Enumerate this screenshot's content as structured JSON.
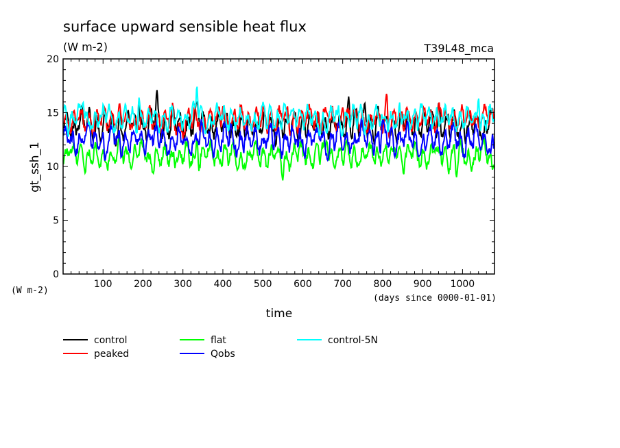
{
  "chart_data": {
    "type": "line",
    "title": "surface upward sensible heat flux",
    "units": "(W m-2)",
    "experiment": "T39L48_mca",
    "ylabel": "gt_ssh_1",
    "yunits": "(W m-2)",
    "xlabel": "time",
    "xunits": "(days since 0000-01-01)",
    "xlim": [
      0,
      1080
    ],
    "ylim": [
      0,
      20
    ],
    "xticks": [
      100,
      200,
      300,
      400,
      500,
      600,
      700,
      800,
      900,
      1000
    ],
    "yticks": [
      0,
      5,
      10,
      15,
      20
    ],
    "grid": false,
    "legend_position": "bottom",
    "series": [
      {
        "name": "control",
        "color": "#000000",
        "mean": 13.8,
        "amp": 0.9,
        "peaks": [
          [
            190,
            16.3
          ],
          [
            235,
            17.1
          ],
          [
            335,
            16.0
          ],
          [
            715,
            16.5
          ],
          [
            755,
            15.9
          ],
          [
            940,
            15.9
          ],
          [
            1070,
            15.4
          ]
        ]
      },
      {
        "name": "peaked",
        "color": "#ff0000",
        "mean": 14.3,
        "amp": 0.8,
        "peaks": [
          [
            105,
            15.4
          ],
          [
            400,
            15.6
          ],
          [
            700,
            15.5
          ],
          [
            810,
            16.8
          ],
          [
            860,
            15.5
          ]
        ]
      },
      {
        "name": "flat",
        "color": "#00ff00",
        "mean": 11.0,
        "amp": 0.8,
        "peaks": [
          [
            550,
            8.7
          ],
          [
            985,
            9.0
          ],
          [
            1075,
            9.7
          ],
          [
            335,
            12.6
          ],
          [
            660,
            12.4
          ]
        ]
      },
      {
        "name": "Qobs",
        "color": "#0000ff",
        "mean": 12.5,
        "amp": 0.9,
        "peaks": [
          [
            105,
            10.5
          ],
          [
            420,
            14.0
          ],
          [
            800,
            14.3
          ],
          [
            1070,
            11.2
          ]
        ]
      },
      {
        "name": "control-5N",
        "color": "#00ffff",
        "mean": 14.5,
        "amp": 0.8,
        "peaks": [
          [
            50,
            16.0
          ],
          [
            190,
            16.4
          ],
          [
            335,
            17.5
          ],
          [
            555,
            15.8
          ],
          [
            1040,
            16.4
          ]
        ]
      }
    ]
  }
}
